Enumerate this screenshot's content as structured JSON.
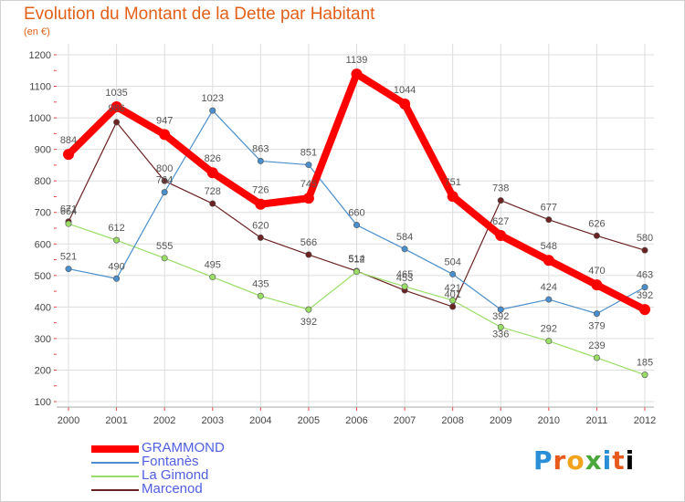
{
  "header": {
    "title": "Evolution du Montant de la Dette par Habitant",
    "subtitle": "(en €)"
  },
  "logo": {
    "text": "Proxiti"
  },
  "colors": {
    "GRAMMOND": "#ff0000",
    "Fontanès": "#4a8fcc",
    "La Gimond": "#99dd66",
    "Marcenod": "#6b2222",
    "grid": "#dddddd",
    "axis_marks": "#ee4444"
  },
  "chart_data": {
    "type": "line",
    "title": "Evolution du Montant de la Dette par Habitant",
    "subtitle": "(en €)",
    "xlabel": "",
    "ylabel": "",
    "x": [
      "2000",
      "2001",
      "2002",
      "2003",
      "2004",
      "2005",
      "2006",
      "2007",
      "2008",
      "2009",
      "2010",
      "2011",
      "2012"
    ],
    "ylim": [
      100,
      1200
    ],
    "yticks": [
      100,
      200,
      300,
      400,
      500,
      600,
      700,
      800,
      900,
      1000,
      1100,
      1200
    ],
    "grid": true,
    "legend_position": "bottom-left",
    "series": [
      {
        "name": "GRAMMOND",
        "values": [
          884,
          1035,
          947,
          826,
          726,
          745,
          1139,
          1044,
          751,
          627,
          548,
          470,
          392
        ]
      },
      {
        "name": "Fontanès",
        "values": [
          521,
          490,
          764,
          1023,
          863,
          851,
          660,
          584,
          504,
          392,
          424,
          379,
          463
        ]
      },
      {
        "name": "La Gimond",
        "values": [
          664,
          612,
          555,
          495,
          435,
          392,
          512,
          465,
          421,
          336,
          292,
          239,
          185
        ]
      },
      {
        "name": "Marcenod",
        "values": [
          671,
          986,
          800,
          728,
          620,
          566,
          514,
          453,
          401,
          738,
          677,
          626,
          580
        ]
      }
    ]
  }
}
